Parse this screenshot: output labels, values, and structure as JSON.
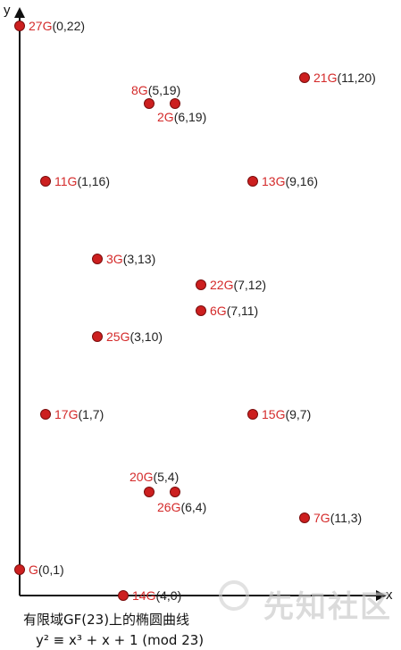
{
  "chart_data": {
    "type": "scatter",
    "xlabel": "x",
    "ylabel": "y",
    "xlim": [
      0,
      22
    ],
    "ylim": [
      0,
      22
    ],
    "marker_color": "#cc1f1f",
    "label_accent_color": "#d42a2a",
    "points": [
      {
        "name": "27G",
        "coord": "(0,22)",
        "x": 0,
        "y": 22
      },
      {
        "name": "8G",
        "coord": "(5,19)",
        "x": 5,
        "y": 19
      },
      {
        "name": "2G",
        "coord": "(6,19)",
        "x": 6,
        "y": 19
      },
      {
        "name": "21G",
        "coord": "(11,20)",
        "x": 11,
        "y": 20
      },
      {
        "name": "11G",
        "coord": "(1,16)",
        "x": 1,
        "y": 16
      },
      {
        "name": "13G",
        "coord": "(9,16)",
        "x": 9,
        "y": 16
      },
      {
        "name": "3G",
        "coord": "(3,13)",
        "x": 3,
        "y": 13
      },
      {
        "name": "22G",
        "coord": "(7,12)",
        "x": 7,
        "y": 12
      },
      {
        "name": "6G",
        "coord": "(7,11)",
        "x": 7,
        "y": 11
      },
      {
        "name": "25G",
        "coord": "(3,10)",
        "x": 3,
        "y": 10
      },
      {
        "name": "17G",
        "coord": "(1,7)",
        "x": 1,
        "y": 7
      },
      {
        "name": "15G",
        "coord": "(9,7)",
        "x": 9,
        "y": 7
      },
      {
        "name": "20G",
        "coord": "(5,4)",
        "x": 5,
        "y": 4
      },
      {
        "name": "26G",
        "coord": "(6,4)",
        "x": 6,
        "y": 4
      },
      {
        "name": "7G",
        "coord": "(11,3)",
        "x": 11,
        "y": 3
      },
      {
        "name": "G",
        "coord": "(0,1)",
        "x": 0,
        "y": 1
      },
      {
        "name": "14G",
        "coord": "(4,0)",
        "x": 4,
        "y": 0
      }
    ]
  },
  "caption": {
    "line1": "有限域GF(23)上的椭圆曲线",
    "line2": "y² ≡ x³ + x + 1 (mod 23)"
  },
  "watermark": "先知社区"
}
